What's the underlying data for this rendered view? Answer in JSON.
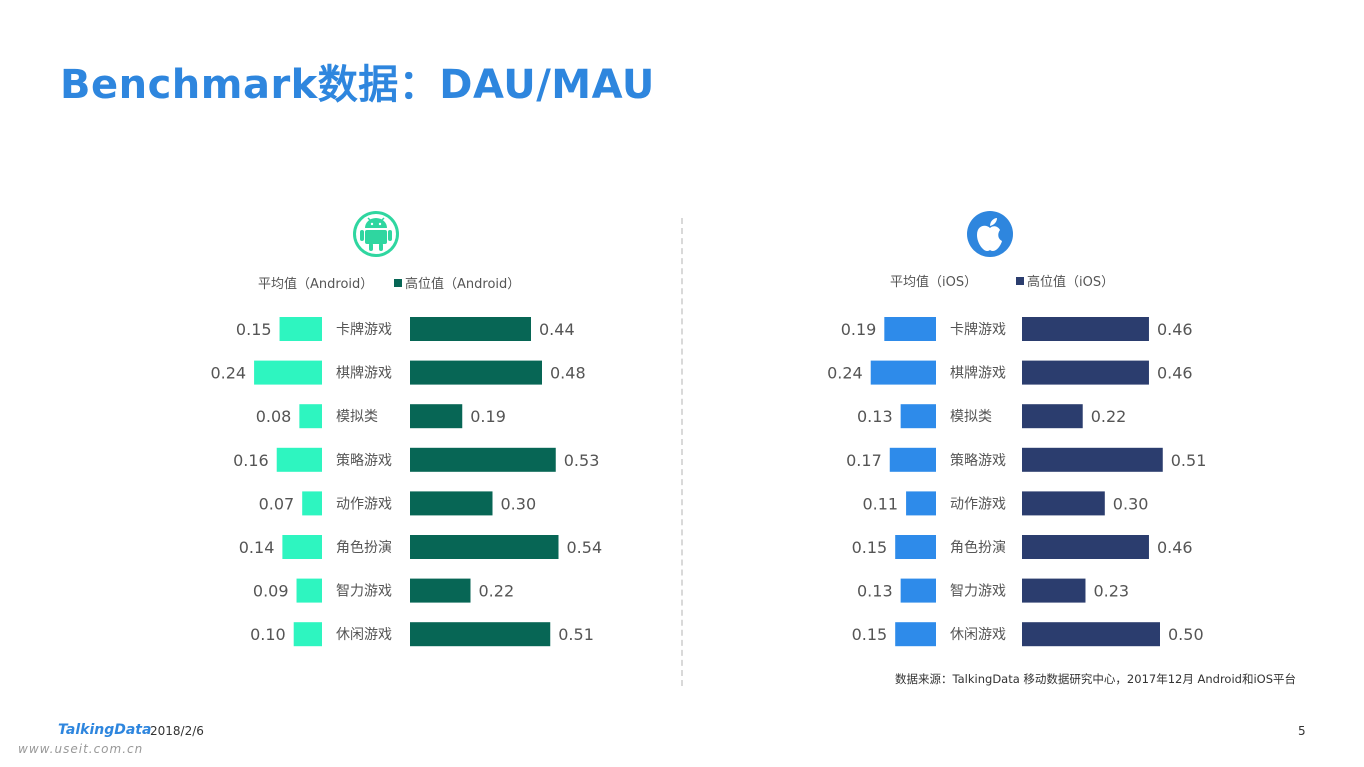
{
  "title": "Benchmark数据：DAU/MAU",
  "source": "数据来源：TalkingData 移动数据研究中心，2017年12月 Android和iOS平台",
  "footer": {
    "brand": "TalkingData",
    "date": "2018/2/6",
    "page": "5",
    "watermark": "www.useit.com.cn"
  },
  "icons": {
    "android": "android-icon",
    "ios": "apple-icon"
  },
  "chart_data": [
    {
      "type": "bar",
      "platform": "Android",
      "categories": [
        "卡牌游戏",
        "棋牌游戏",
        "模拟类",
        "策略游戏",
        "动作游戏",
        "角色扮演",
        "智力游戏",
        "休闲游戏"
      ],
      "series": [
        {
          "name": "平均值（Android）",
          "values": [
            0.15,
            0.24,
            0.08,
            0.16,
            0.07,
            0.14,
            0.09,
            0.1
          ],
          "color": "#2ef5c0"
        },
        {
          "name": "高位值（Android）",
          "values": [
            0.44,
            0.48,
            0.19,
            0.53,
            0.3,
            0.54,
            0.22,
            0.51
          ],
          "color": "#076655"
        }
      ],
      "value_labels_avg": [
        "0.15",
        "0.24",
        "0.08",
        "0.16",
        "0.07",
        "0.14",
        "0.09",
        "0.10"
      ],
      "value_labels_high": [
        "0.44",
        "0.48",
        "0.19",
        "0.53",
        "0.30",
        "0.54",
        "0.22",
        "0.51"
      ],
      "legend": "top"
    },
    {
      "type": "bar",
      "platform": "iOS",
      "categories": [
        "卡牌游戏",
        "棋牌游戏",
        "模拟类",
        "策略游戏",
        "动作游戏",
        "角色扮演",
        "智力游戏",
        "休闲游戏"
      ],
      "series": [
        {
          "name": "平均值（iOS）",
          "values": [
            0.19,
            0.24,
            0.13,
            0.17,
            0.11,
            0.15,
            0.13,
            0.15
          ],
          "color": "#2e8bea"
        },
        {
          "name": "高位值（iOS）",
          "values": [
            0.46,
            0.46,
            0.22,
            0.51,
            0.3,
            0.46,
            0.23,
            0.5
          ],
          "color": "#2b3d6e"
        }
      ],
      "value_labels_avg": [
        "0.19",
        "0.24",
        "0.13",
        "0.17",
        "0.11",
        "0.15",
        "0.13",
        "0.15"
      ],
      "value_labels_high": [
        "0.46",
        "0.46",
        "0.22",
        "0.51",
        "0.30",
        "0.46",
        "0.23",
        "0.50"
      ],
      "legend": "top"
    }
  ]
}
